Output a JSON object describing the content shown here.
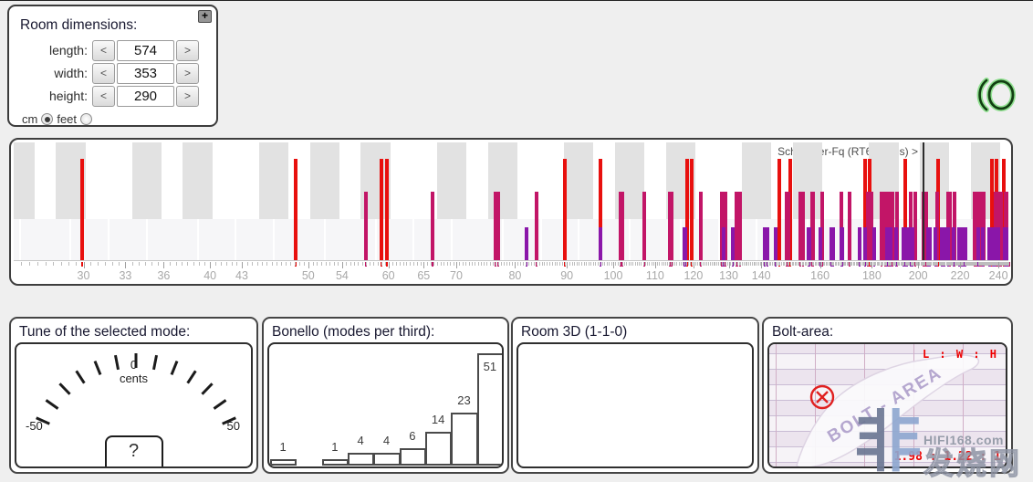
{
  "room_dimensions": {
    "title": "Room dimensions:",
    "expand_button": "+",
    "decrement": "<",
    "increment": ">",
    "fields": [
      {
        "label": "length:",
        "value": "574"
      },
      {
        "label": "width:",
        "value": "353"
      },
      {
        "label": "height:",
        "value": "290"
      }
    ],
    "unit_cm": "cm",
    "unit_feet": "feet",
    "unit_selected": "cm"
  },
  "logo": {
    "core_color": "#123f12",
    "glow_color": "#7edc7e"
  },
  "mode_chart": {
    "schroeder_label": "Schroeder-Fq (RT60=0.6s) >",
    "schroeder_frequency_hz": 202,
    "freq_min_hz": 25.6,
    "freq_max_hz": 245.5,
    "axis_tick_labels": [
      30,
      33,
      36,
      40,
      43,
      50,
      54,
      60,
      65,
      70,
      80,
      90,
      100,
      110,
      120,
      130,
      140,
      160,
      180,
      200,
      220,
      240
    ],
    "minor_tick_step_hz": 0.5,
    "piano_black_keys_hz": [
      25.96,
      29.14,
      34.65,
      38.89,
      46.25,
      51.91,
      58.27,
      69.3,
      77.78,
      92.5,
      103.83,
      116.54,
      138.59,
      155.56,
      185.0,
      207.65,
      233.08
    ],
    "piano_key_separators_hz": [
      25.96,
      29.14,
      31.77,
      34.65,
      38.89,
      42.41,
      46.25,
      51.91,
      58.27,
      63.54,
      69.3,
      77.78,
      84.82,
      92.5,
      103.83,
      116.54,
      127.09,
      138.59,
      155.56,
      169.64,
      185.0,
      207.65,
      233.08
    ],
    "black_key_halfwidth_factor": 1.034,
    "mode_colors": {
      "axial": "#e8100e",
      "tangential": "#c21567",
      "oblique": "#8a16a9"
    },
    "modes_hz": {
      "axial": [
        29.9,
        48.6,
        59.1,
        59.8,
        89.6,
        97.2,
        118.3,
        119.5,
        145.8,
        149.4,
        177.4,
        179.3,
        194.3,
        209.2,
        236.6,
        239.0,
        242.9
      ],
      "tangential": [
        57.0,
        66.3,
        76.5,
        77.0,
        84.1,
        101.7,
        102.0,
        107.4,
        113.8,
        114.1,
        122.0,
        127.9,
        129.0,
        132.2,
        132.5,
        133.3,
        148.3,
        148.8,
        153.1,
        154.0,
        157.1,
        157.3,
        157.5,
        160.7,
        168.1,
        171.1,
        178.2,
        179.9,
        184.0,
        185.7,
        187.2,
        187.7,
        188.5,
        188.8,
        190.6,
        196.6,
        198.8,
        202.3,
        203.1,
        203.3,
        203.9,
        208.7,
        213.9,
        214.0,
        214.7,
        214.8,
        217.4,
        227.5,
        228.1,
        229.6,
        230.6,
        231.0,
        231.9,
        238.4,
        240.3,
        241.5,
        243.9,
        244.0,
        244.7,
        245.1,
        246.2
      ],
      "oblique": [
        82.2,
        97.1,
        117.6,
        117.9,
        128.5,
        131.3,
        141.1,
        141.9,
        144.8,
        156.0,
        156.2,
        160.1,
        164.3,
        165.0,
        167.9,
        168.3,
        175.0,
        177.4,
        181.0,
        186.4,
        187.8,
        190.1,
        193.4,
        194.2,
        194.9,
        196.6,
        197.0,
        197.5,
        204.5,
        204.6,
        205.3,
        208.0,
        210.9,
        211.7,
        212.3,
        213.9,
        216.9,
        219.4,
        220.2,
        221.3,
        222.0,
        222.5,
        222.7,
        229.4,
        231.5,
        234.9,
        235.2,
        235.7,
        237.0,
        237.3,
        238.1,
        238.5,
        239.9,
        243.3,
        244.5,
        245.1
      ]
    }
  },
  "tune_panel": {
    "title": "Tune of the selected mode:",
    "min_label": "-50",
    "max_label": "50",
    "zero_label": "0",
    "unit_label": "cents",
    "value_label": "?",
    "tick_count": 13
  },
  "bonello_panel": {
    "title": "Bonello (modes per third):",
    "chart_data": {
      "type": "bar",
      "values": [
        1,
        0,
        1,
        4,
        4,
        6,
        14,
        23,
        51
      ],
      "labels": [
        "1",
        "",
        "1",
        "4",
        "4",
        "6",
        "14",
        "23",
        "51"
      ],
      "max_value": 51
    }
  },
  "room3d_panel": {
    "title": "Room 3D (1-1-0)"
  },
  "bolt_panel": {
    "title": "Bolt-area:",
    "area_label": "BOLT - AREA",
    "ratio_header": "L : W : H",
    "ratio_value": "1.98 : 1.22 : 1",
    "marker_color": "#e02020"
  },
  "watermark": {
    "logo_char": "非",
    "site": "HIFI168.com",
    "site_cn": "发烧网"
  }
}
